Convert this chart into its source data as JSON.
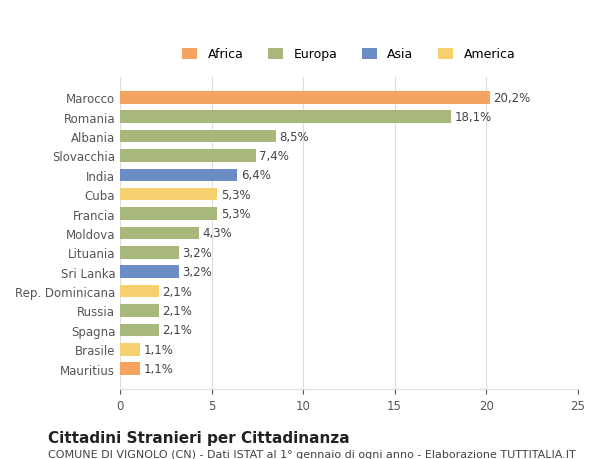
{
  "categories": [
    "Mauritius",
    "Brasile",
    "Spagna",
    "Russia",
    "Rep. Dominicana",
    "Sri Lanka",
    "Lituania",
    "Moldova",
    "Francia",
    "Cuba",
    "India",
    "Slovacchia",
    "Albania",
    "Romania",
    "Marocco"
  ],
  "values": [
    1.1,
    1.1,
    2.1,
    2.1,
    2.1,
    3.2,
    3.2,
    4.3,
    5.3,
    5.3,
    6.4,
    7.4,
    8.5,
    18.1,
    20.2
  ],
  "labels": [
    "1,1%",
    "1,1%",
    "2,1%",
    "2,1%",
    "2,1%",
    "3,2%",
    "3,2%",
    "4,3%",
    "5,3%",
    "5,3%",
    "6,4%",
    "7,4%",
    "8,5%",
    "18,1%",
    "20,2%"
  ],
  "continents": [
    "Africa",
    "America",
    "Europa",
    "Europa",
    "America",
    "Asia",
    "Europa",
    "Europa",
    "Europa",
    "America",
    "Asia",
    "Europa",
    "Europa",
    "Europa",
    "Africa"
  ],
  "continent_colors": {
    "Africa": "#F4A460",
    "Europa": "#A8B87C",
    "Asia": "#6B8CC4",
    "America": "#F5D06E"
  },
  "legend_order": [
    "Africa",
    "Europa",
    "Asia",
    "America"
  ],
  "xlim": [
    0,
    25
  ],
  "xticks": [
    0,
    5,
    10,
    15,
    20,
    25
  ],
  "title": "Cittadini Stranieri per Cittadinanza",
  "subtitle": "COMUNE DI VIGNOLO (CN) - Dati ISTAT al 1° gennaio di ogni anno - Elaborazione TUTTITALIA.IT",
  "bg_color": "#ffffff",
  "grid_color": "#dddddd",
  "bar_height": 0.65,
  "label_fontsize": 8.5,
  "tick_fontsize": 8.5,
  "title_fontsize": 11,
  "subtitle_fontsize": 8
}
